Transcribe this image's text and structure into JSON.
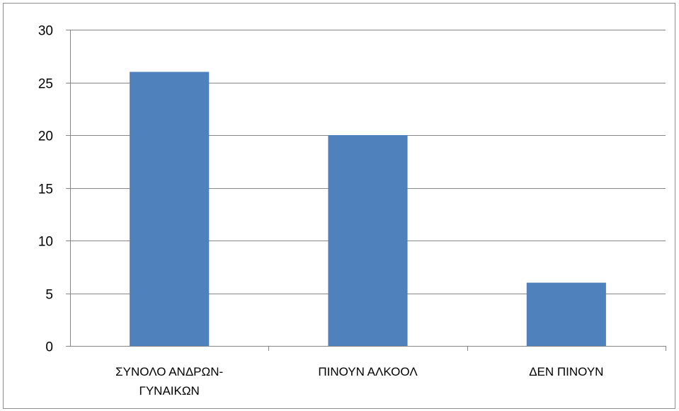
{
  "chart_data": {
    "type": "bar",
    "categories": [
      [
        "ΣΥΝΟΛΟ ΑΝΔΡΩΝ-",
        "ΓΥΝΑΙΚΩΝ"
      ],
      [
        "ΠΙΝΟΥΝ ΑΛΚΟΟΛ"
      ],
      [
        "ΔΕΝ ΠΙΝΟΥΝ"
      ]
    ],
    "values": [
      26,
      20,
      6
    ],
    "title": "",
    "xlabel": "",
    "ylabel": "",
    "ylim": [
      0,
      30
    ],
    "yticks": [
      0,
      5,
      10,
      15,
      20,
      25,
      30
    ],
    "grid": "horizontal",
    "legend": "none",
    "bar_color": "#4f81bd",
    "grid_color": "#868686"
  }
}
